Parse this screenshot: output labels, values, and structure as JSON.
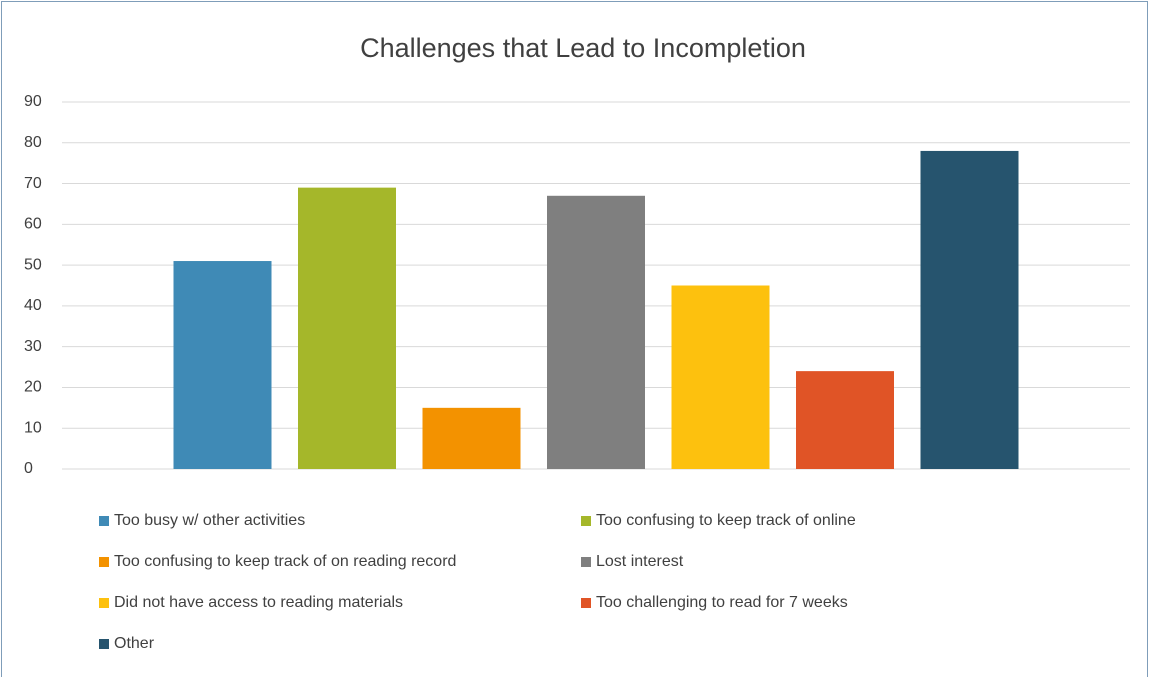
{
  "chart_data": {
    "type": "bar",
    "title": "Challenges that Lead to Incompletion",
    "series": [
      {
        "name": "Too busy w/ other activities",
        "color": "#3f8ab6",
        "values": [
          51
        ]
      },
      {
        "name": "Too confusing to keep track of online",
        "color": "#a5b72a",
        "values": [
          69
        ]
      },
      {
        "name": "Too confusing to keep track of on reading record",
        "color": "#f39200",
        "values": [
          15
        ]
      },
      {
        "name": "Lost interest",
        "color": "#7f7f7f",
        "values": [
          67
        ]
      },
      {
        "name": "Did not have access to reading materials",
        "color": "#fdc10e",
        "values": [
          45
        ]
      },
      {
        "name": "Too challenging to read for 7 weeks",
        "color": "#e05426",
        "values": [
          24
        ]
      },
      {
        "name": "Other",
        "color": "#26546e",
        "values": [
          78
        ]
      }
    ],
    "ylim": [
      0,
      90
    ],
    "yticks": [
      0,
      10,
      20,
      30,
      40,
      50,
      60,
      70,
      80,
      90
    ],
    "grid": true,
    "legend": "bottom"
  }
}
